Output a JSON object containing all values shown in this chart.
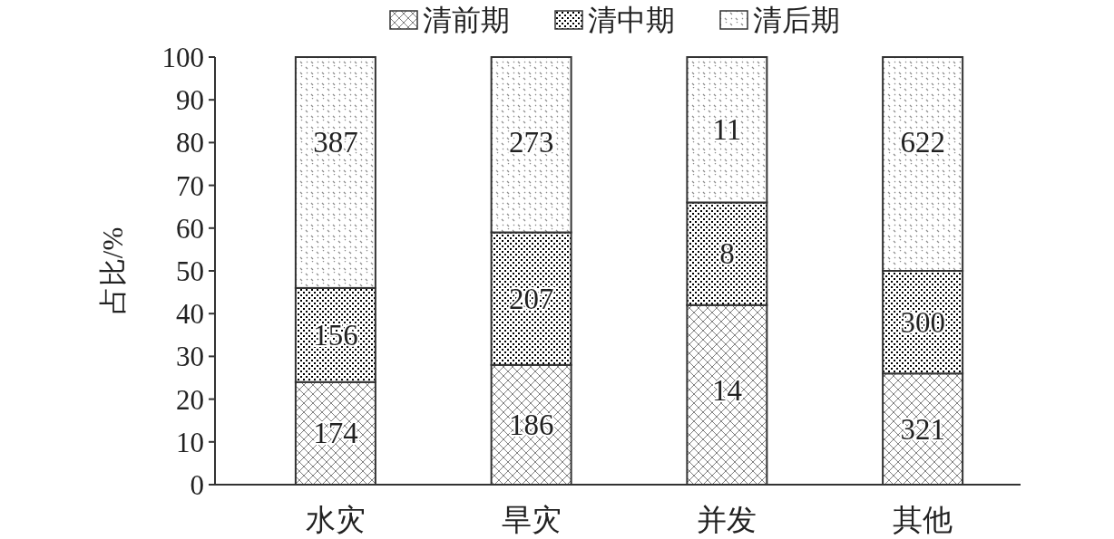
{
  "chart_data": {
    "type": "bar",
    "stacked": true,
    "ylabel": "占比/%",
    "categories": [
      "水灾",
      "旱灾",
      "并发",
      "其他"
    ],
    "series": [
      {
        "name": "清前期",
        "color": "#333333",
        "values": [
          24,
          28,
          42,
          26
        ]
      },
      {
        "name": "清中期",
        "color": "#333333",
        "values": [
          22,
          31,
          24,
          24
        ]
      },
      {
        "name": "清后期",
        "color": "#333333",
        "values": [
          54,
          41,
          34,
          50
        ]
      }
    ],
    "annotations": [
      {
        "text": "174",
        "x": "水灾",
        "y": 24
      },
      {
        "text": "156",
        "x": "水灾",
        "y": 46
      },
      {
        "text": "387",
        "x": "水灾",
        "y": 100
      },
      {
        "text": "186",
        "x": "旱灾",
        "y": 28
      },
      {
        "text": "207",
        "x": "旱灾",
        "y": 59
      },
      {
        "text": "273",
        "x": "旱灾",
        "y": 100
      },
      {
        "text": "14",
        "x": "并发",
        "y": 42
      },
      {
        "text": "8",
        "x": "并发",
        "y": 66
      },
      {
        "text": "11",
        "x": "并发",
        "y": 100
      },
      {
        "text": "321",
        "x": "其他",
        "y": 26
      },
      {
        "text": "300",
        "x": "其他",
        "y": 50
      },
      {
        "text": "622",
        "x": "其他",
        "y": 100
      }
    ],
    "ylim": [
      0,
      100
    ],
    "yticks": [
      0,
      10,
      20,
      30,
      40,
      50,
      60,
      70,
      80,
      90,
      100
    ],
    "legend": "top"
  }
}
